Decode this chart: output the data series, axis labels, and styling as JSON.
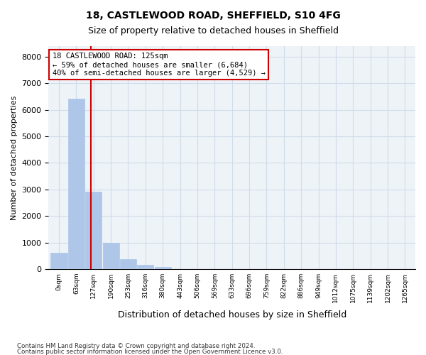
{
  "title_line1": "18, CASTLEWOOD ROAD, SHEFFIELD, S10 4FG",
  "title_line2": "Size of property relative to detached houses in Sheffield",
  "xlabel": "Distribution of detached houses by size in Sheffield",
  "ylabel": "Number of detached properties",
  "bar_color": "#aec6e8",
  "grid_color": "#d0dce8",
  "background_color": "#eef3f8",
  "line_color": "#cc0000",
  "bins": [
    "0sqm",
    "63sqm",
    "127sqm",
    "190sqm",
    "253sqm",
    "316sqm",
    "380sqm",
    "443sqm",
    "506sqm",
    "569sqm",
    "633sqm",
    "696sqm",
    "759sqm",
    "822sqm",
    "886sqm",
    "949sqm",
    "1012sqm",
    "1075sqm",
    "1139sqm",
    "1202sqm",
    "1265sqm"
  ],
  "values": [
    620,
    6420,
    2920,
    975,
    360,
    145,
    70,
    0,
    0,
    0,
    0,
    0,
    0,
    0,
    0,
    0,
    0,
    0,
    0,
    0,
    0
  ],
  "ylim": [
    0,
    8400
  ],
  "yticks": [
    0,
    1000,
    2000,
    3000,
    4000,
    5000,
    6000,
    7000,
    8000
  ],
  "property_line_x": 1.85,
  "annotation_title": "18 CASTLEWOOD ROAD: 125sqm",
  "annotation_line1": "← 59% of detached houses are smaller (6,684)",
  "annotation_line2": "40% of semi-detached houses are larger (4,529) →",
  "footer_line1": "Contains HM Land Registry data © Crown copyright and database right 2024.",
  "footer_line2": "Contains public sector information licensed under the Open Government Licence v3.0."
}
